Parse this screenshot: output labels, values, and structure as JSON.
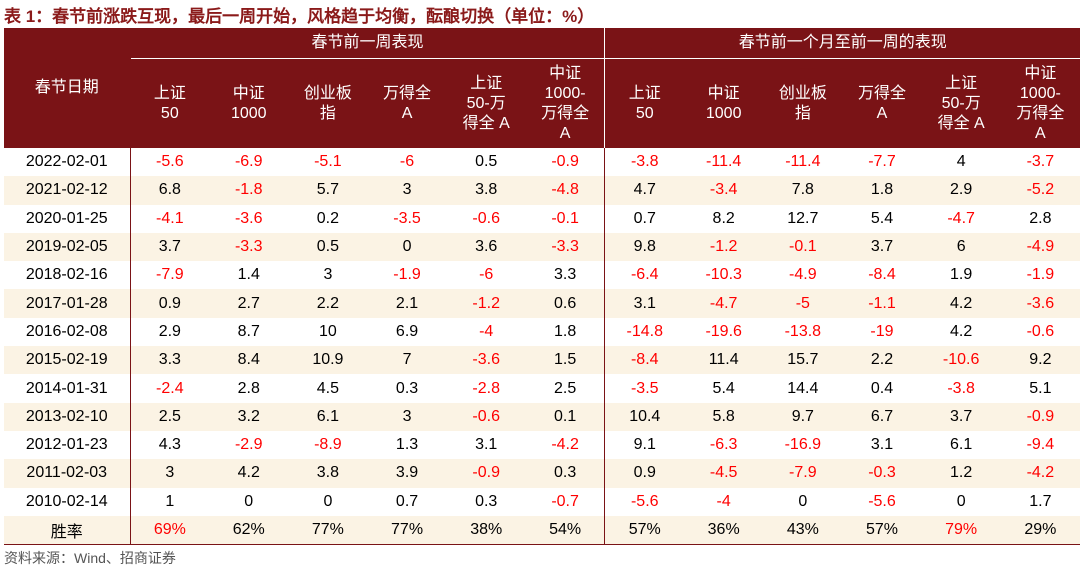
{
  "title": "表 1：春节前涨跌互现，最后一周开始，风格趋于均衡，酝酿切换（单位：%）",
  "table": {
    "header_label": "春节日期",
    "groups": [
      {
        "title": "春节前一周表现",
        "columns": [
          "上证\n50",
          "中证\n1000",
          "创业板\n指",
          "万得全\nA",
          "上证\n50-万\n得全 A",
          "中证\n1000-\n万得全\nA"
        ]
      },
      {
        "title": "春节前一个月至前一周的表现",
        "columns": [
          "上证\n50",
          "中证\n1000",
          "创业板\n指",
          "万得全\nA",
          "上证\n50-万\n得全 A",
          "中证\n1000-\n万得全\nA"
        ]
      }
    ],
    "negative_color": "#ff0000",
    "rows": [
      {
        "date": "2022-02-01",
        "values": [
          -5.6,
          -6.9,
          -5.1,
          -6,
          0.5,
          -0.9,
          -3.8,
          -11.4,
          -11.4,
          -7.7,
          4,
          -3.7
        ]
      },
      {
        "date": "2021-02-12",
        "values": [
          6.8,
          -1.8,
          5.7,
          3,
          3.8,
          -4.8,
          4.7,
          -3.4,
          7.8,
          1.8,
          2.9,
          -5.2
        ]
      },
      {
        "date": "2020-01-25",
        "values": [
          -4.1,
          -3.6,
          0.2,
          -3.5,
          -0.6,
          -0.1,
          0.7,
          8.2,
          12.7,
          5.4,
          -4.7,
          2.8
        ]
      },
      {
        "date": "2019-02-05",
        "values": [
          3.7,
          -3.3,
          0.5,
          0,
          3.6,
          -3.3,
          9.8,
          -1.2,
          -0.1,
          3.7,
          6,
          -4.9
        ]
      },
      {
        "date": "2018-02-16",
        "values": [
          -7.9,
          1.4,
          3,
          -1.9,
          -6,
          3.3,
          -6.4,
          -10.3,
          -4.9,
          -8.4,
          1.9,
          -1.9
        ]
      },
      {
        "date": "2017-01-28",
        "values": [
          0.9,
          2.7,
          2.2,
          2.1,
          -1.2,
          0.6,
          3.1,
          -4.7,
          -5,
          -1.1,
          4.2,
          -3.6
        ]
      },
      {
        "date": "2016-02-08",
        "values": [
          2.9,
          8.7,
          10,
          6.9,
          -4,
          1.8,
          -14.8,
          -19.6,
          -13.8,
          -19,
          4.2,
          -0.6
        ]
      },
      {
        "date": "2015-02-19",
        "values": [
          3.3,
          8.4,
          10.9,
          7,
          -3.6,
          1.5,
          -8.4,
          11.4,
          15.7,
          2.2,
          -10.6,
          9.2
        ]
      },
      {
        "date": "2014-01-31",
        "values": [
          -2.4,
          2.8,
          4.5,
          0.3,
          -2.8,
          2.5,
          -3.5,
          5.4,
          14.4,
          0.4,
          -3.8,
          5.1
        ]
      },
      {
        "date": "2013-02-10",
        "values": [
          2.5,
          3.2,
          6.1,
          3,
          -0.6,
          0.1,
          10.4,
          5.8,
          9.7,
          6.7,
          3.7,
          -0.9
        ]
      },
      {
        "date": "2012-01-23",
        "values": [
          4.3,
          -2.9,
          -8.9,
          1.3,
          3.1,
          -4.2,
          9.1,
          -6.3,
          -16.9,
          3.1,
          6.1,
          -9.4
        ]
      },
      {
        "date": "2011-02-03",
        "values": [
          3,
          4.2,
          3.8,
          3.9,
          -0.9,
          0.3,
          0.9,
          -4.5,
          -7.9,
          -0.3,
          1.2,
          -4.2
        ]
      },
      {
        "date": "2010-02-14",
        "values": [
          1,
          0,
          0,
          0.7,
          0.3,
          -0.7,
          -5.6,
          -4,
          0,
          -5.6,
          0,
          1.7
        ]
      }
    ],
    "win_rate": {
      "label": "胜率",
      "values": [
        "69%",
        "62%",
        "77%",
        "77%",
        "38%",
        "54%",
        "57%",
        "36%",
        "43%",
        "57%",
        "79%",
        "29%"
      ],
      "colors": [
        "#ff0000",
        "#000000",
        "#000000",
        "#000000",
        "#000000",
        "#000000",
        "#000000",
        "#000000",
        "#000000",
        "#000000",
        "#ff0000",
        "#000000"
      ]
    }
  },
  "source": "资料来源：Wind、招商证券"
}
